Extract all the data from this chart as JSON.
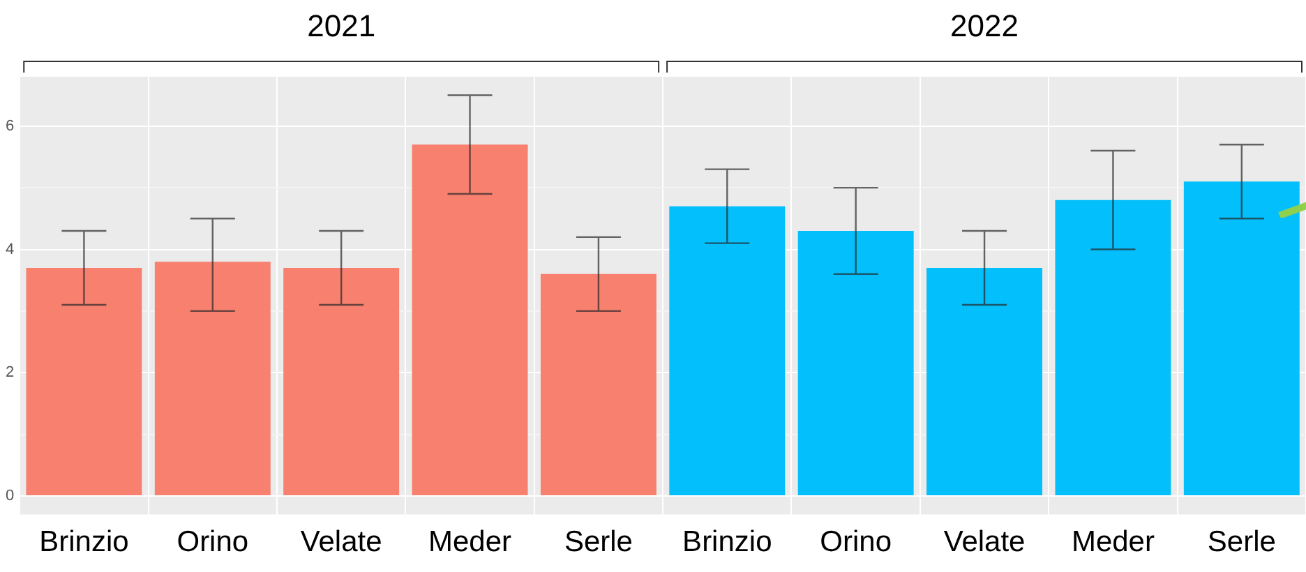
{
  "chart_data": {
    "type": "bar",
    "categories": [
      "Brinzio",
      "Orino",
      "Velate",
      "Meder",
      "Serle",
      "Brinzio",
      "Orino",
      "Velate",
      "Meder",
      "Serle"
    ],
    "values": [
      3.7,
      3.8,
      3.7,
      5.7,
      3.6,
      4.7,
      4.3,
      3.7,
      4.8,
      5.1
    ],
    "colors": [
      "#f8806f",
      "#f8806f",
      "#f8806f",
      "#f8806f",
      "#f8806f",
      "#03bffc",
      "#03bffc",
      "#03bffc",
      "#03bffc",
      "#03bffc"
    ],
    "errors": [
      [
        3.1,
        4.3
      ],
      [
        3.0,
        4.5
      ],
      [
        3.1,
        4.3
      ],
      [
        4.9,
        6.5
      ],
      [
        3.0,
        4.2
      ],
      [
        4.1,
        5.3
      ],
      [
        3.6,
        5.0
      ],
      [
        3.1,
        4.3
      ],
      [
        4.0,
        5.6
      ],
      [
        4.5,
        5.7
      ]
    ],
    "annotations": [
      "2021",
      "2022"
    ],
    "ylim": [
      -0.3,
      6.8
    ],
    "yticks": [
      0,
      {
        "value": 1,
        "label": null
      },
      2,
      {
        "value": 3,
        "label": null
      },
      4,
      {
        "value": 5,
        "label": null
      },
      6
    ],
    "grid": true,
    "legend": false
  }
}
